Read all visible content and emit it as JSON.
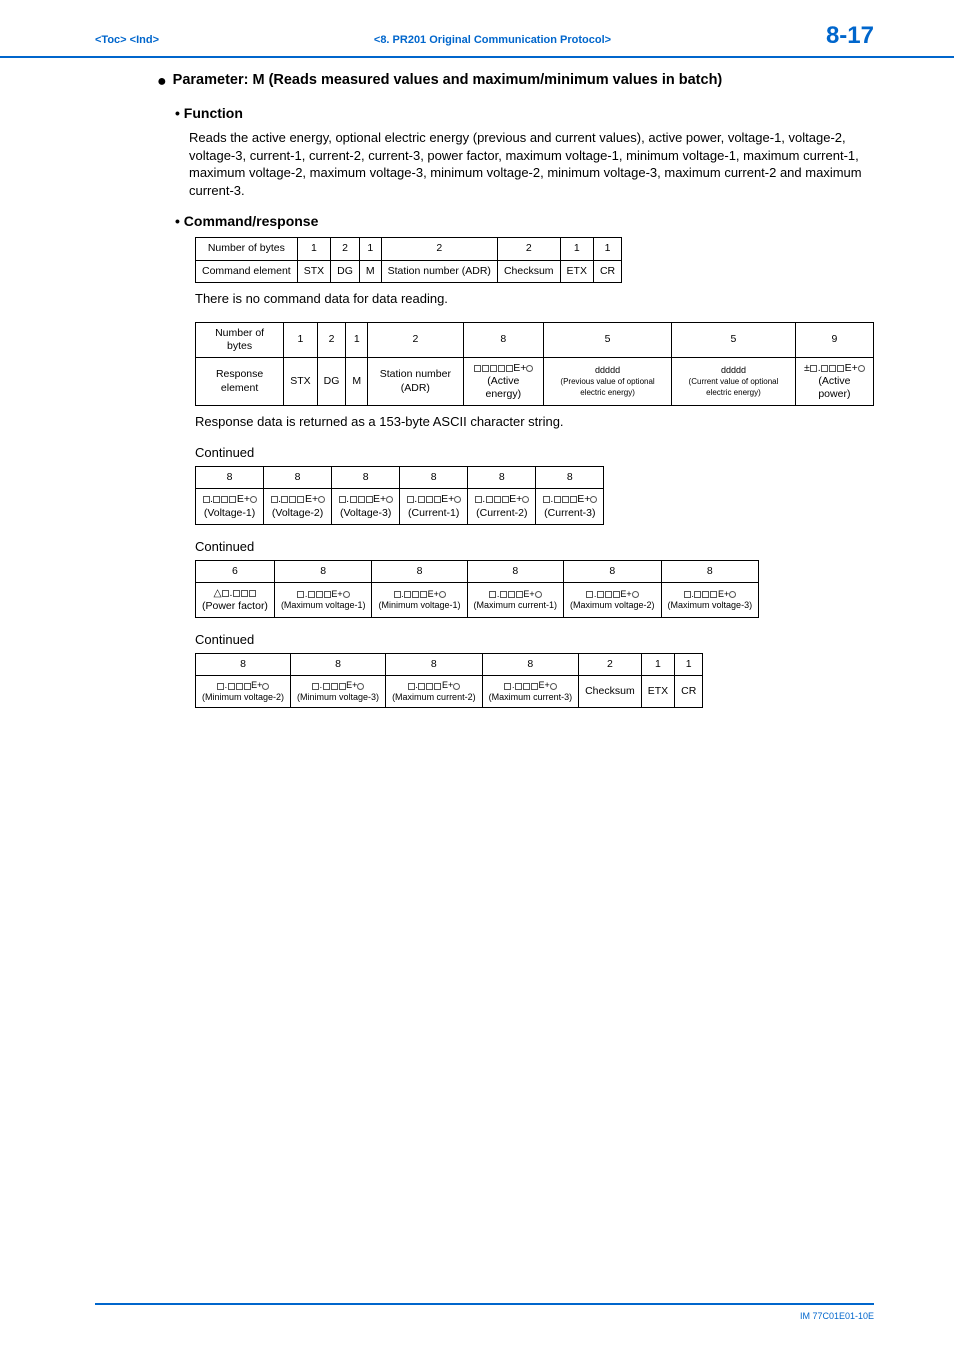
{
  "header": {
    "toc": "<Toc>",
    "ind": "<Ind>",
    "center": "<8.  PR201 Original Communication Protocol>",
    "page": "8-17"
  },
  "param_title": "Parameter: M (Reads measured values and maximum/minimum values in batch)",
  "function": {
    "heading": "Function",
    "text": "Reads the active energy, optional electric energy (previous and current values), active power, voltage-1, voltage-2, voltage-3, current-1, current-2, current-3, power factor, maximum voltage-1, minimum voltage-1, maximum current-1, maximum voltage-2, maximum voltage-3, minimum voltage-2, minimum voltage-3, maximum current-2 and maximum current-3."
  },
  "command_response": {
    "heading": "Command/response",
    "command_table": {
      "bytes": [
        "1",
        "2",
        "1",
        "2",
        "2",
        "1",
        "1"
      ],
      "row_label_1": "Number of bytes",
      "row_label_2": "Command element",
      "cells": [
        "STX",
        "DG",
        "M",
        "Station number (ADR)",
        "Checksum",
        "ETX",
        "CR"
      ]
    },
    "note1": "There is no command data for data reading.",
    "response_table": {
      "bytes": [
        "1",
        "2",
        "1",
        "2",
        "8",
        "5",
        "5",
        "9"
      ],
      "row_label_1": "Number of bytes",
      "row_label_2": "Response element",
      "cells": [
        "STX",
        "DG",
        "M",
        "Station number (ADR)",
        "(Active energy)",
        "ddddd",
        "ddddd",
        "(Active power)"
      ],
      "sub1": "(Previous value of optional electric energy)",
      "sub2": "(Current value of optional electric energy)"
    },
    "note2": "Response data is returned as a 153-byte ASCII character string."
  },
  "continued_label": "Continued",
  "cont1": {
    "bytes": [
      "8",
      "8",
      "8",
      "8",
      "8",
      "8"
    ],
    "labels": [
      "(Voltage-1)",
      "(Voltage-2)",
      "(Voltage-3)",
      "(Current-1)",
      "(Current-2)",
      "(Current-3)"
    ]
  },
  "cont2": {
    "bytes": [
      "6",
      "8",
      "8",
      "8",
      "8",
      "8"
    ],
    "labels": [
      "(Power factor)",
      "(Maximum voltage-1)",
      "(Minimum voltage-1)",
      "(Maximum current-1)",
      "(Maximum voltage-2)",
      "(Maximum voltage-3)"
    ]
  },
  "cont3": {
    "bytes": [
      "8",
      "8",
      "8",
      "8",
      "2",
      "1",
      "1"
    ],
    "labels": [
      "(Minimum voltage-2)",
      "(Minimum voltage-3)",
      "(Maximum current-2)",
      "(Maximum current-3)",
      "Checksum",
      "ETX",
      "CR"
    ]
  },
  "footer": "IM 77C01E01-10E"
}
